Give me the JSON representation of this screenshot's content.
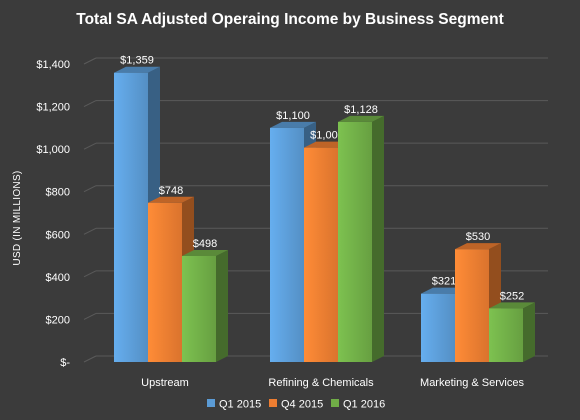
{
  "chart_data": {
    "type": "bar",
    "title": "Total SA Adjusted Operaing Income by Business Segment",
    "ylabel": "USD (IN MILLIONS)",
    "xlabel": "",
    "categories": [
      "Upstream",
      "Refining & Chemicals",
      "Marketing & Services"
    ],
    "series": [
      {
        "name": "Q1 2015",
        "values": [
          1359,
          1100,
          321
        ],
        "labels": [
          "$1,359",
          "$1,100",
          "$321"
        ]
      },
      {
        "name": "Q4 2015",
        "values": [
          748,
          1007,
          530
        ],
        "labels": [
          "$748",
          "$1,007",
          "$530"
        ]
      },
      {
        "name": "Q1 2016",
        "values": [
          498,
          1128,
          252
        ],
        "labels": [
          "$498",
          "$1,128",
          "$252"
        ]
      }
    ],
    "ylim": [
      0,
      1400
    ],
    "yticks": [
      0,
      200,
      400,
      600,
      800,
      1000,
      1200,
      1400
    ],
    "ytick_labels": [
      "$-",
      "$200",
      "$400",
      "$600",
      "$800",
      "$1,000",
      "$1,200",
      "$1,400"
    ],
    "grid": true,
    "legend_position": "bottom",
    "colors": {
      "Q1 2015": "#5b9bd5",
      "Q4 2015": "#ed7d31",
      "Q1 2016": "#70ad47",
      "background": "#3b3b3b",
      "grid": "#5a5a5a"
    }
  }
}
